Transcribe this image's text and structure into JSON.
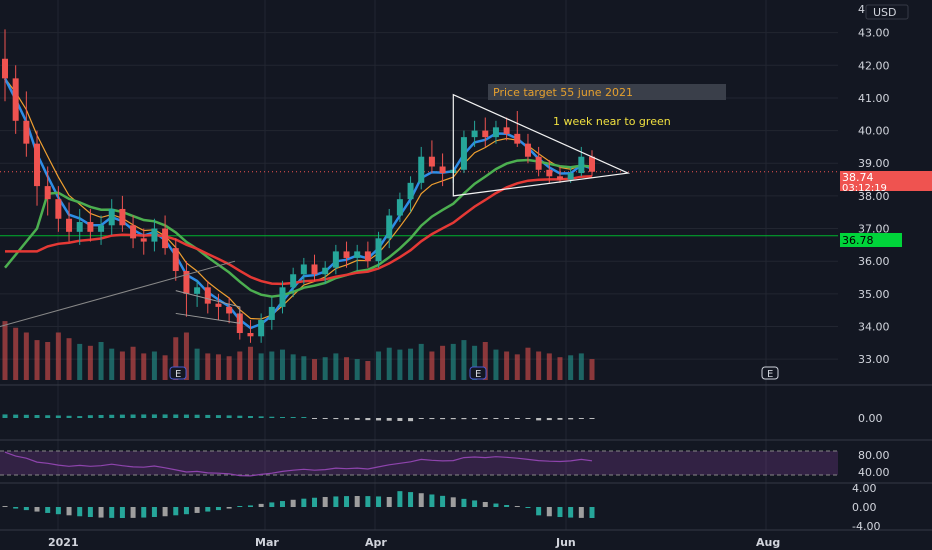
{
  "chart_data": {
    "type": "line",
    "currency": "USD",
    "x_labels": [
      "2021",
      "Mar",
      "Apr",
      "Jun",
      "Aug"
    ],
    "price_axis": {
      "ylim": [
        32.3,
        44.0
      ],
      "ticks": [
        33.0,
        34.0,
        35.0,
        36.0,
        37.0,
        38.0,
        39.0,
        40.0,
        41.0,
        42.0,
        43.0
      ],
      "tick_labels": [
        "33.00",
        "34.00",
        "35.00",
        "36.00",
        "37.00",
        "38.00",
        "39.00",
        "40.00",
        "41.00",
        "42.00",
        "43.00"
      ],
      "top_partial": "44"
    },
    "badges": {
      "current_price": "38.74",
      "countdown": "03:12:19",
      "level_price": "36.78"
    },
    "horizontal_level": 36.78,
    "candles_ohlc": [
      [
        42.2,
        43.1,
        40.9,
        41.6
      ],
      [
        41.6,
        42.0,
        39.9,
        40.3
      ],
      [
        40.3,
        41.2,
        39.2,
        39.6
      ],
      [
        39.6,
        40.0,
        37.7,
        38.3
      ],
      [
        38.3,
        38.9,
        37.4,
        37.9
      ],
      [
        37.9,
        38.3,
        36.9,
        37.3
      ],
      [
        37.3,
        37.8,
        36.6,
        36.9
      ],
      [
        36.9,
        37.6,
        36.5,
        37.2
      ],
      [
        37.2,
        37.6,
        36.6,
        36.9
      ],
      [
        36.9,
        37.4,
        36.5,
        37.1
      ],
      [
        37.1,
        37.9,
        36.8,
        37.6
      ],
      [
        37.6,
        38.0,
        36.9,
        37.1
      ],
      [
        37.1,
        37.4,
        36.4,
        36.7
      ],
      [
        36.7,
        37.0,
        36.2,
        36.6
      ],
      [
        36.6,
        37.3,
        36.3,
        37.0
      ],
      [
        37.0,
        37.4,
        36.2,
        36.4
      ],
      [
        36.4,
        36.7,
        35.4,
        35.7
      ],
      [
        35.7,
        36.0,
        34.3,
        35.0
      ],
      [
        35.0,
        35.4,
        34.6,
        35.2
      ],
      [
        35.2,
        35.4,
        34.4,
        34.7
      ],
      [
        34.7,
        35.0,
        34.2,
        34.6
      ],
      [
        34.6,
        34.9,
        34.1,
        34.4
      ],
      [
        34.4,
        34.6,
        33.6,
        33.8
      ],
      [
        33.8,
        34.2,
        33.5,
        33.7
      ],
      [
        33.7,
        34.4,
        33.5,
        34.2
      ],
      [
        34.2,
        34.9,
        33.9,
        34.6
      ],
      [
        34.6,
        35.4,
        34.4,
        35.2
      ],
      [
        35.2,
        35.8,
        34.9,
        35.6
      ],
      [
        35.6,
        36.1,
        35.3,
        35.9
      ],
      [
        35.9,
        36.2,
        35.4,
        35.6
      ],
      [
        35.6,
        36.0,
        35.3,
        35.8
      ],
      [
        35.8,
        36.5,
        35.6,
        36.3
      ],
      [
        36.3,
        36.6,
        35.8,
        36.1
      ],
      [
        36.1,
        36.5,
        35.7,
        36.3
      ],
      [
        36.3,
        36.6,
        35.8,
        36.0
      ],
      [
        36.0,
        36.9,
        35.8,
        36.7
      ],
      [
        36.7,
        37.6,
        36.4,
        37.4
      ],
      [
        37.4,
        38.1,
        37.2,
        37.9
      ],
      [
        37.9,
        38.6,
        37.5,
        38.4
      ],
      [
        38.4,
        39.5,
        38.2,
        39.2
      ],
      [
        39.2,
        39.7,
        38.7,
        38.9
      ],
      [
        38.9,
        39.3,
        38.3,
        38.7
      ],
      [
        38.7,
        39.0,
        38.4,
        38.8
      ],
      [
        38.8,
        40.0,
        38.7,
        39.8
      ],
      [
        39.8,
        40.3,
        39.5,
        40.0
      ],
      [
        40.0,
        40.4,
        39.5,
        39.8
      ],
      [
        39.8,
        40.3,
        39.6,
        40.1
      ],
      [
        40.1,
        40.4,
        39.7,
        39.9
      ],
      [
        39.9,
        40.6,
        39.5,
        39.6
      ],
      [
        39.6,
        39.9,
        39.0,
        39.2
      ],
      [
        39.2,
        39.5,
        38.6,
        38.8
      ],
      [
        38.8,
        39.1,
        38.4,
        38.6
      ],
      [
        38.6,
        38.9,
        38.4,
        38.5
      ],
      [
        38.5,
        38.9,
        38.4,
        38.7
      ],
      [
        38.7,
        39.5,
        38.6,
        39.2
      ],
      [
        39.2,
        39.4,
        38.6,
        38.74
      ]
    ],
    "volume_relative": [
      0.62,
      0.55,
      0.5,
      0.42,
      0.4,
      0.5,
      0.44,
      0.38,
      0.36,
      0.4,
      0.33,
      0.3,
      0.35,
      0.28,
      0.3,
      0.26,
      0.45,
      0.5,
      0.33,
      0.28,
      0.27,
      0.25,
      0.3,
      0.35,
      0.28,
      0.3,
      0.32,
      0.27,
      0.25,
      0.22,
      0.24,
      0.28,
      0.24,
      0.22,
      0.2,
      0.3,
      0.34,
      0.32,
      0.33,
      0.38,
      0.3,
      0.36,
      0.38,
      0.42,
      0.36,
      0.4,
      0.32,
      0.3,
      0.27,
      0.34,
      0.3,
      0.28,
      0.24,
      0.26,
      0.28,
      0.22
    ],
    "indicators": {
      "macd_ticks": [
        "0.00"
      ],
      "rsi_ticks": [
        "80.00",
        "40.00"
      ],
      "osc_ticks": [
        "4.00",
        "0.00",
        "-4.00"
      ]
    },
    "event_markers": [
      "E",
      "E",
      "E"
    ]
  },
  "annotations": {
    "price_target": "Price target 55 june 2021",
    "note": "1 week near to green"
  },
  "colors": {
    "background": "#131722",
    "grid": "#222631",
    "up": "#26a69a",
    "down": "#ef5350",
    "ema_fast": "#2e8de6",
    "ema_orange": "#f0a030",
    "sma_green": "#4caf50",
    "sma_red": "#e53935",
    "rsi": "#8e44ad",
    "level": "#00b32c",
    "triangle": "#f2f2f2",
    "target_text": "#e6a02e",
    "note_text": "#f0e040"
  }
}
